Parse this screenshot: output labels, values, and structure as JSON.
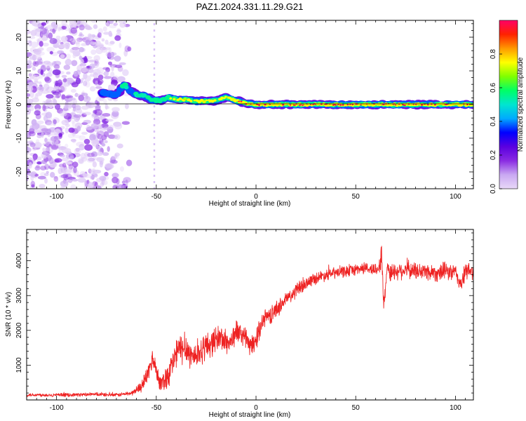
{
  "chart_data": [
    {
      "type": "heatmap",
      "title": "PAZ1.2024.331.11.29.G21",
      "xlabel": "Height of straight line (km)",
      "ylabel": "Frequency (Hz)",
      "xlim": [
        -115,
        109
      ],
      "ylim": [
        -25,
        25
      ],
      "xticks": [
        -100,
        -50,
        0,
        50,
        100
      ],
      "yticks": [
        -20,
        -10,
        0,
        10,
        20
      ],
      "colorbar": {
        "label": "Normalized spectral amplitude",
        "range": [
          0,
          1
        ],
        "ticks": [
          "0.0",
          "0.2",
          "0.4",
          "0.6",
          "0.8"
        ],
        "colors": [
          "#e8d8f8",
          "#c9a8f2",
          "#8a2be2",
          "#5a00e0",
          "#0000ff",
          "#00aaff",
          "#00e5d0",
          "#00ff66",
          "#7fff00",
          "#ffff00",
          "#ff9900",
          "#ff2200",
          "#ff0066"
        ]
      },
      "ridge": {
        "x": [
          -77,
          -73,
          -70,
          -66,
          -63,
          -60,
          -56,
          -52,
          -48,
          -44,
          -40,
          -35,
          -30,
          -25,
          -20,
          -15,
          -12,
          -9,
          -6,
          -3,
          0,
          10,
          20,
          30,
          40,
          50,
          60,
          70,
          80,
          90,
          100,
          109
        ],
        "y": [
          3.5,
          3.0,
          2.8,
          6.0,
          4.0,
          3.0,
          2.5,
          1.5,
          1.2,
          2.0,
          1.5,
          1.5,
          1.0,
          1.0,
          1.2,
          2.2,
          1.5,
          1.0,
          0.5,
          0.2,
          0.0,
          0.0,
          0.0,
          0.0,
          0.0,
          0.0,
          0.0,
          0.0,
          0.0,
          0.0,
          0.0,
          0.0
        ],
        "amplitude": [
          0.4,
          0.45,
          0.4,
          0.5,
          0.45,
          0.5,
          0.55,
          0.6,
          0.6,
          0.65,
          0.7,
          0.7,
          0.75,
          0.75,
          0.75,
          0.75,
          0.8,
          0.85,
          0.85,
          0.9,
          0.9,
          0.9,
          0.9,
          0.92,
          0.92,
          0.92,
          0.9,
          0.92,
          0.92,
          0.9,
          0.85,
          0.85
        ]
      },
      "scatter_region": {
        "x": [
          -115,
          -62
        ],
        "y": [
          -25,
          25
        ],
        "amplitude": [
          0.0,
          0.2
        ]
      },
      "marker_line": {
        "x": -51
      }
    },
    {
      "type": "line",
      "xlabel": "Height of straight line (km)",
      "ylabel": "SNR (10 * v/v)",
      "xlim": [
        -115,
        109
      ],
      "ylim": [
        0,
        4900
      ],
      "xticks": [
        -100,
        -50,
        0,
        50,
        100
      ],
      "yticks": [
        1000,
        2000,
        3000,
        4000
      ],
      "color": "#ee2222",
      "x": [
        -115,
        -100,
        -90,
        -80,
        -70,
        -62,
        -57,
        -54,
        -52,
        -50,
        -48,
        -45,
        -42,
        -40,
        -38,
        -35,
        -32,
        -30,
        -28,
        -25,
        -22,
        -20,
        -18,
        -15,
        -12,
        -10,
        -8,
        -5,
        -3,
        0,
        3,
        5,
        8,
        10,
        13,
        15,
        18,
        20,
        23,
        25,
        28,
        30,
        35,
        40,
        45,
        50,
        55,
        58,
        60,
        62,
        63,
        64,
        65,
        66,
        67,
        70,
        75,
        80,
        85,
        90,
        95,
        100,
        103,
        105,
        107,
        109
      ],
      "y": [
        150,
        140,
        150,
        160,
        140,
        200,
        420,
        780,
        1200,
        900,
        450,
        650,
        1000,
        1350,
        1450,
        1500,
        1250,
        1280,
        1380,
        1550,
        1650,
        1750,
        1800,
        1650,
        1700,
        2000,
        1900,
        1800,
        1500,
        1700,
        2250,
        2400,
        2450,
        2600,
        2750,
        2900,
        3000,
        3150,
        3250,
        3350,
        3450,
        3500,
        3600,
        3650,
        3700,
        3750,
        3800,
        3750,
        3750,
        3850,
        4200,
        2700,
        3300,
        3950,
        3650,
        3700,
        3750,
        3700,
        3700,
        3650,
        3700,
        3650,
        3300,
        3700,
        3700,
        3700
      ],
      "noise_amplitude": [
        60,
        60,
        60,
        60,
        60,
        80,
        200,
        350,
        350,
        300,
        250,
        450,
        500,
        550,
        550,
        500,
        500,
        450,
        450,
        500,
        450,
        450,
        450,
        400,
        400,
        400,
        350,
        350,
        350,
        350,
        300,
        300,
        300,
        300,
        250,
        250,
        250,
        250,
        250,
        200,
        200,
        200,
        200,
        200,
        200,
        200,
        200,
        200,
        250,
        300,
        400,
        300,
        300,
        300,
        300,
        300,
        300,
        300,
        300,
        300,
        300,
        300,
        300,
        300,
        300,
        300
      ]
    }
  ]
}
